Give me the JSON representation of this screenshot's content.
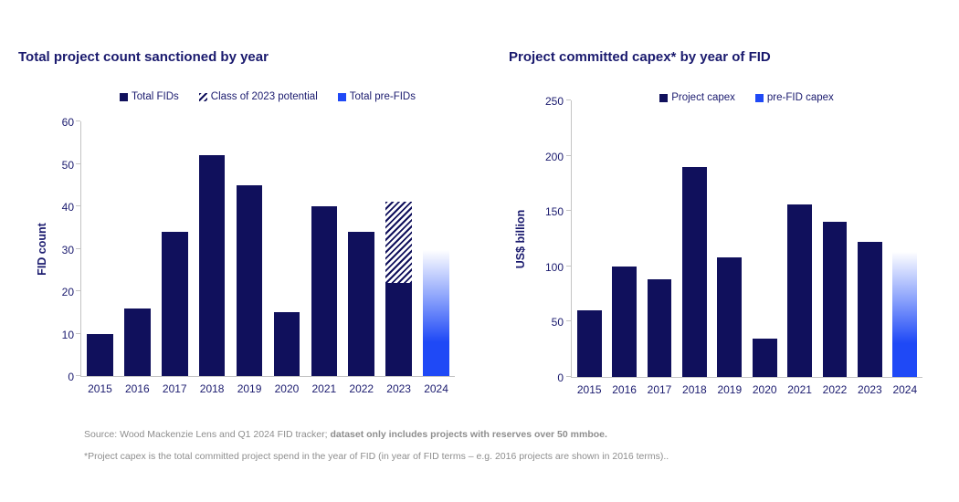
{
  "colors": {
    "navy": "#10105c",
    "blue": "#1f49f6",
    "title_text": "#1a1a6e",
    "axis_line": "#c4c4c4",
    "footer_text": "#8e8e8e"
  },
  "chart_data": [
    {
      "type": "bar",
      "title": "Total project count sanctioned by year",
      "ylabel": "FID count",
      "xlabel": "",
      "ylim": [
        0,
        60
      ],
      "yticks": [
        0,
        10,
        20,
        30,
        40,
        50,
        60
      ],
      "grid": false,
      "legend_position": "top",
      "categories": [
        "2015",
        "2016",
        "2017",
        "2018",
        "2019",
        "2020",
        "2021",
        "2022",
        "2023",
        "2024"
      ],
      "legend": [
        {
          "label": "Total FIDs",
          "marker": "navy"
        },
        {
          "label": "Class of 2023 potential",
          "marker": "hatch"
        },
        {
          "label": "Total pre-FIDs",
          "marker": "blue"
        }
      ],
      "series": [
        {
          "name": "Total FIDs",
          "style": "navy",
          "values": [
            10,
            16,
            34,
            52,
            45,
            15,
            40,
            34,
            22,
            0
          ]
        },
        {
          "name": "Class of 2023 potential",
          "style": "hatch",
          "values": [
            0,
            0,
            0,
            0,
            0,
            0,
            0,
            0,
            19,
            0
          ]
        },
        {
          "name": "Total pre-FIDs",
          "style": "fade",
          "values": [
            0,
            0,
            0,
            0,
            0,
            0,
            0,
            0,
            0,
            31
          ]
        }
      ]
    },
    {
      "type": "bar",
      "title": "Project committed capex* by year of FID",
      "ylabel": "US$ billion",
      "xlabel": "",
      "ylim": [
        0,
        250
      ],
      "yticks": [
        0,
        50,
        100,
        150,
        200,
        250
      ],
      "grid": false,
      "legend_position": "top",
      "categories": [
        "2015",
        "2016",
        "2017",
        "2018",
        "2019",
        "2020",
        "2021",
        "2022",
        "2023",
        "2024"
      ],
      "legend": [
        {
          "label": "Project capex",
          "marker": "navy"
        },
        {
          "label": "pre-FID capex",
          "marker": "blue"
        }
      ],
      "series": [
        {
          "name": "Project capex",
          "style": "navy",
          "values": [
            60,
            100,
            88,
            190,
            108,
            35,
            156,
            140,
            122,
            0
          ]
        },
        {
          "name": "pre-FID capex",
          "style": "fade",
          "values": [
            0,
            0,
            0,
            0,
            0,
            0,
            0,
            0,
            0,
            118
          ]
        }
      ]
    }
  ],
  "footer": {
    "source_prefix": "Source: Wood Mackenzie Lens and Q1 2024 FID tracker; ",
    "source_bold": "dataset only includes projects with reserves over 50 mmboe.",
    "note": "*Project capex is the total committed project spend in the year of FID (in year of FID terms – e.g. 2016 projects are shown in 2016 terms).."
  }
}
